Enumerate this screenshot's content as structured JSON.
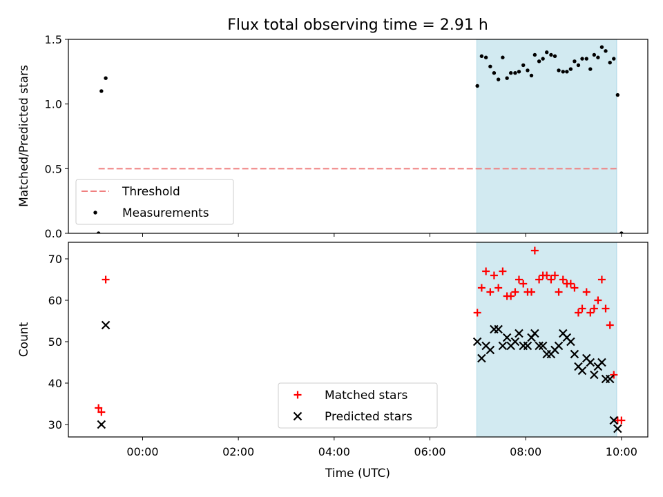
{
  "chart_data": [
    {
      "type": "scatter",
      "title": "Flux total observing time = 2.91 h",
      "xlabel": "",
      "ylabel": "Matched/Predicted stars",
      "xlim": [
        -1.55,
        10.55
      ],
      "ylim": [
        0.0,
        1.5
      ],
      "yticks": [
        0.0,
        0.5,
        1.0,
        1.5
      ],
      "ytick_labels": [
        "0.0",
        "0.5",
        "1.0",
        "1.5"
      ],
      "shaded_region": {
        "x_start": 6.98,
        "x_end": 9.9,
        "color": "#add8e6"
      },
      "threshold": {
        "name": "Threshold",
        "value": 0.5,
        "x_start": -0.92,
        "x_end": 9.92,
        "color": "#f08080"
      },
      "legend": {
        "position": "lower-left",
        "entries": [
          "Threshold",
          "Measurements"
        ]
      },
      "series": [
        {
          "name": "Measurements",
          "marker": "dot",
          "color": "#000000",
          "points": [
            [
              -0.92,
              0.0
            ],
            [
              -0.86,
              1.1
            ],
            [
              -0.77,
              1.2
            ],
            [
              6.99,
              1.14
            ],
            [
              7.08,
              1.37
            ],
            [
              7.17,
              1.36
            ],
            [
              7.26,
              1.29
            ],
            [
              7.34,
              1.24
            ],
            [
              7.43,
              1.19
            ],
            [
              7.52,
              1.36
            ],
            [
              7.61,
              1.2
            ],
            [
              7.69,
              1.24
            ],
            [
              7.78,
              1.24
            ],
            [
              7.86,
              1.25
            ],
            [
              7.95,
              1.3
            ],
            [
              8.04,
              1.26
            ],
            [
              8.12,
              1.22
            ],
            [
              8.19,
              1.38
            ],
            [
              8.28,
              1.33
            ],
            [
              8.36,
              1.35
            ],
            [
              8.44,
              1.4
            ],
            [
              8.53,
              1.38
            ],
            [
              8.61,
              1.37
            ],
            [
              8.69,
              1.26
            ],
            [
              8.78,
              1.25
            ],
            [
              8.86,
              1.25
            ],
            [
              8.94,
              1.27
            ],
            [
              9.02,
              1.33
            ],
            [
              9.1,
              1.3
            ],
            [
              9.18,
              1.35
            ],
            [
              9.27,
              1.35
            ],
            [
              9.35,
              1.27
            ],
            [
              9.43,
              1.38
            ],
            [
              9.51,
              1.36
            ],
            [
              9.59,
              1.44
            ],
            [
              9.67,
              1.41
            ],
            [
              9.76,
              1.32
            ],
            [
              9.84,
              1.35
            ],
            [
              9.92,
              1.07
            ],
            [
              10.0,
              0.0
            ]
          ]
        }
      ]
    },
    {
      "type": "scatter",
      "title": "",
      "xlabel": "Time (UTC)",
      "ylabel": "Count",
      "xlim": [
        -1.55,
        10.55
      ],
      "ylim": [
        27,
        74
      ],
      "xticks": [
        0,
        2,
        4,
        6,
        8,
        10
      ],
      "xtick_labels": [
        "00:00",
        "02:00",
        "04:00",
        "06:00",
        "08:00",
        "10:00"
      ],
      "yticks": [
        30,
        40,
        50,
        60,
        70
      ],
      "ytick_labels": [
        "30",
        "40",
        "50",
        "60",
        "70"
      ],
      "shaded_region": {
        "x_start": 6.98,
        "x_end": 9.9,
        "color": "#add8e6"
      },
      "legend": {
        "position": "lower-center",
        "entries": [
          "Matched stars",
          "Predicted stars"
        ]
      },
      "series": [
        {
          "name": "Matched stars",
          "marker": "plus",
          "color": "#ff0000",
          "points": [
            [
              -0.92,
              34
            ],
            [
              -0.86,
              33
            ],
            [
              -0.77,
              65
            ],
            [
              6.99,
              57
            ],
            [
              7.08,
              63
            ],
            [
              7.17,
              67
            ],
            [
              7.26,
              62
            ],
            [
              7.34,
              66
            ],
            [
              7.43,
              63
            ],
            [
              7.52,
              67
            ],
            [
              7.61,
              61
            ],
            [
              7.69,
              61
            ],
            [
              7.78,
              62
            ],
            [
              7.86,
              65
            ],
            [
              7.95,
              64
            ],
            [
              8.04,
              62
            ],
            [
              8.12,
              62
            ],
            [
              8.19,
              72
            ],
            [
              8.28,
              65
            ],
            [
              8.36,
              66
            ],
            [
              8.44,
              66
            ],
            [
              8.53,
              65
            ],
            [
              8.61,
              66
            ],
            [
              8.69,
              62
            ],
            [
              8.78,
              65
            ],
            [
              8.86,
              64
            ],
            [
              8.94,
              64
            ],
            [
              9.02,
              63
            ],
            [
              9.1,
              57
            ],
            [
              9.18,
              58
            ],
            [
              9.27,
              62
            ],
            [
              9.35,
              57
            ],
            [
              9.43,
              58
            ],
            [
              9.51,
              60
            ],
            [
              9.59,
              65
            ],
            [
              9.67,
              58
            ],
            [
              9.76,
              54
            ],
            [
              9.84,
              42
            ],
            [
              9.92,
              31
            ],
            [
              10.0,
              31
            ]
          ]
        },
        {
          "name": "Predicted stars",
          "marker": "x",
          "color": "#000000",
          "points": [
            [
              -0.86,
              30
            ],
            [
              -0.77,
              54
            ],
            [
              6.99,
              50
            ],
            [
              7.08,
              46
            ],
            [
              7.17,
              49
            ],
            [
              7.26,
              48
            ],
            [
              7.34,
              53
            ],
            [
              7.43,
              53
            ],
            [
              7.52,
              49
            ],
            [
              7.61,
              51
            ],
            [
              7.69,
              49
            ],
            [
              7.78,
              50
            ],
            [
              7.86,
              52
            ],
            [
              7.95,
              49
            ],
            [
              8.04,
              49
            ],
            [
              8.12,
              51
            ],
            [
              8.19,
              52
            ],
            [
              8.28,
              49
            ],
            [
              8.36,
              49
            ],
            [
              8.44,
              47
            ],
            [
              8.53,
              47
            ],
            [
              8.61,
              48
            ],
            [
              8.69,
              49
            ],
            [
              8.78,
              52
            ],
            [
              8.86,
              51
            ],
            [
              8.94,
              50
            ],
            [
              9.02,
              47
            ],
            [
              9.1,
              44
            ],
            [
              9.18,
              43
            ],
            [
              9.27,
              46
            ],
            [
              9.35,
              45
            ],
            [
              9.43,
              42
            ],
            [
              9.51,
              44
            ],
            [
              9.59,
              45
            ],
            [
              9.67,
              41
            ],
            [
              9.76,
              41
            ],
            [
              9.84,
              31
            ],
            [
              9.92,
              29
            ]
          ]
        }
      ]
    }
  ]
}
